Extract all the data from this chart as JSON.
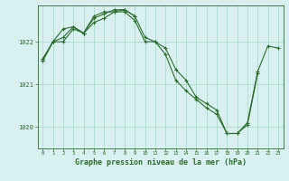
{
  "background_color": "#d8f0f0",
  "grid_color": "#aaddcc",
  "line_color": "#2d6e2d",
  "marker_color": "#2d6e2d",
  "xlabel": "Graphe pression niveau de la mer (hPa)",
  "xlabel_fontsize": 6.0,
  "ylim": [
    1019.5,
    1022.85
  ],
  "xlim": [
    -0.5,
    23.5
  ],
  "yticks": [
    1020,
    1021,
    1022
  ],
  "xticks": [
    0,
    1,
    2,
    3,
    4,
    5,
    6,
    7,
    8,
    9,
    10,
    11,
    12,
    13,
    14,
    15,
    16,
    17,
    18,
    19,
    20,
    21,
    22,
    23
  ],
  "series": [
    {
      "x": [
        0,
        1,
        2,
        3,
        4,
        5,
        6,
        7,
        8,
        9,
        10,
        11,
        12,
        13,
        14,
        15,
        16,
        17,
        18,
        19,
        20,
        21,
        22,
        23
      ],
      "y": [
        1021.6,
        1022.0,
        1022.0,
        1022.3,
        1022.2,
        1022.6,
        1022.7,
        1022.7,
        1022.7,
        1022.5,
        1022.0,
        1022.0,
        1021.85,
        1021.35,
        1021.1,
        1020.7,
        1020.55,
        1020.4,
        1019.85,
        1019.85,
        1020.1,
        1021.3,
        1021.9,
        1021.85
      ]
    },
    {
      "x": [
        0,
        1,
        2,
        3,
        4,
        5,
        6,
        7,
        8,
        9,
        10,
        11,
        12,
        13,
        14,
        15,
        16,
        17,
        18,
        19,
        20,
        21
      ],
      "y": [
        1021.55,
        1022.0,
        1022.3,
        1022.35,
        1022.2,
        1022.45,
        1022.55,
        1022.7,
        1022.75,
        1022.6,
        1022.1,
        1022.0,
        1021.7,
        1021.1,
        1020.85,
        1020.65,
        1020.45,
        1020.3,
        1019.85,
        1019.85,
        1020.05,
        1021.25
      ]
    },
    {
      "x": [
        0,
        1,
        2,
        3,
        4,
        5,
        6,
        7,
        8,
        9
      ],
      "y": [
        1021.55,
        1022.0,
        1022.1,
        1022.35,
        1022.2,
        1022.55,
        1022.65,
        1022.75,
        1022.75,
        1022.6
      ]
    }
  ]
}
